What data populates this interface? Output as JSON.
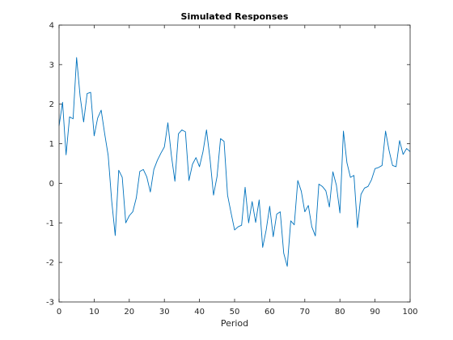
{
  "chart_data": {
    "type": "line",
    "title": "Simulated Responses",
    "xlabel": "Period",
    "ylabel": "",
    "xlim": [
      0,
      100
    ],
    "ylim": [
      -3,
      4
    ],
    "xticks": [
      0,
      10,
      20,
      30,
      40,
      50,
      60,
      70,
      80,
      90,
      100
    ],
    "yticks": [
      -3,
      -2,
      -1,
      0,
      1,
      2,
      3,
      4
    ],
    "grid": false,
    "line_color": "#0072BD",
    "series": [
      {
        "x": [
          0,
          1,
          2,
          3,
          4,
          5,
          6,
          7,
          8,
          9,
          10,
          11,
          12,
          13,
          14,
          15,
          16,
          17,
          18,
          19,
          20,
          21,
          22,
          23,
          24,
          25,
          26,
          27,
          28,
          29,
          30,
          31,
          32,
          33,
          34,
          35,
          36,
          37,
          38,
          39,
          40,
          41,
          42,
          43,
          44,
          45,
          46,
          47,
          48,
          49,
          50,
          51,
          52,
          53,
          54,
          55,
          56,
          57,
          58,
          59,
          60,
          61,
          62,
          63,
          64,
          65,
          66,
          67,
          68,
          69,
          70,
          71,
          72,
          73,
          74,
          75,
          76,
          77,
          78,
          79,
          80,
          81,
          82,
          83,
          84,
          85,
          86,
          87,
          88,
          89,
          90,
          91,
          92,
          93,
          94,
          95,
          96,
          97,
          98,
          99,
          100
        ],
        "values": [
          1.45,
          2.05,
          0.72,
          1.68,
          1.63,
          3.18,
          2.2,
          1.55,
          2.27,
          2.3,
          1.2,
          1.65,
          1.85,
          1.25,
          0.7,
          -0.45,
          -1.32,
          0.33,
          0.15,
          -1.0,
          -0.82,
          -0.72,
          -0.37,
          0.3,
          0.35,
          0.16,
          -0.22,
          0.35,
          0.58,
          0.76,
          0.92,
          1.53,
          0.7,
          0.05,
          1.25,
          1.35,
          1.3,
          0.07,
          0.48,
          0.65,
          0.42,
          0.8,
          1.35,
          0.62,
          -0.3,
          0.17,
          1.13,
          1.06,
          -0.3,
          -0.75,
          -1.18,
          -1.1,
          -1.06,
          -0.1,
          -1.0,
          -0.46,
          -0.99,
          -0.42,
          -1.62,
          -1.18,
          -0.58,
          -1.35,
          -0.78,
          -0.72,
          -1.77,
          -2.1,
          -0.95,
          -1.05,
          0.07,
          -0.2,
          -0.72,
          -0.56,
          -1.1,
          -1.33,
          -0.02,
          -0.08,
          -0.19,
          -0.6,
          0.29,
          -0.05,
          -0.75,
          1.32,
          0.52,
          0.15,
          0.2,
          -1.12,
          -0.28,
          -0.12,
          -0.08,
          0.09,
          0.37,
          0.4,
          0.45,
          1.32,
          0.83,
          0.45,
          0.42,
          1.08,
          0.73,
          0.88,
          0.8
        ]
      }
    ]
  }
}
